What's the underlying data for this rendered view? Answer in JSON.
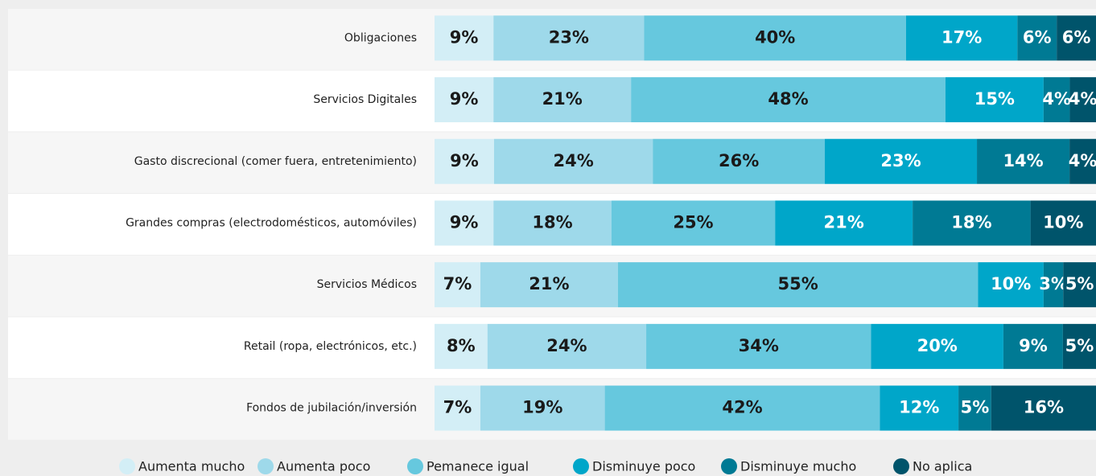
{
  "chart_data": {
    "type": "stacked-bar-horizontal",
    "categories": [
      "Obligaciones",
      "Servicios Digitales",
      "Gasto discrecional (comer fuera, entretenimiento)",
      "Grandes compras (electrodomésticos, automóviles)",
      "Servicios Médicos",
      "Retail (ropa, electrónicos, etc.)",
      "Fondos de jubilación/inversión"
    ],
    "series": [
      {
        "name": "Aumenta mucho",
        "color": "#d3eef6",
        "text_color": "#1a1a1a",
        "values": [
          9,
          9,
          9,
          9,
          7,
          8,
          7
        ],
        "value_labels": [
          "9%",
          "9%",
          "9%",
          "9%",
          "7%",
          "8%",
          "7%"
        ]
      },
      {
        "name": "Aumenta poco",
        "color": "#9ed9ea",
        "text_color": "#1a1a1a",
        "values": [
          23,
          21,
          24,
          18,
          21,
          24,
          19
        ],
        "value_labels": [
          "23%",
          "21%",
          "24%",
          "18%",
          "21%",
          "24%",
          "19%"
        ]
      },
      {
        "name": "Pemanece igual",
        "color": "#66c8de",
        "text_color": "#1a1a1a",
        "values": [
          40,
          48,
          26,
          25,
          55,
          34,
          42
        ],
        "value_labels": [
          "40%",
          "48%",
          "26%",
          "25%",
          "55%",
          "34%",
          "42%"
        ]
      },
      {
        "name": "Disminuye poco",
        "color": "#00a6c9",
        "text_color": "#ffffff",
        "values": [
          17,
          15,
          23,
          21,
          10,
          20,
          12
        ],
        "value_labels": [
          "17%",
          "15%",
          "23%",
          "21%",
          "10%",
          "20%",
          "12%"
        ]
      },
      {
        "name": "Disminuye mucho",
        "color": "#007a94",
        "text_color": "#ffffff",
        "values": [
          6,
          4,
          14,
          18,
          3,
          9,
          5
        ],
        "value_labels": [
          "6%",
          "4%",
          "14%",
          "18%",
          "3%",
          "9%",
          "5%"
        ]
      },
      {
        "name": "No aplica",
        "color": "#00546b",
        "text_color": "#ffffff",
        "values": [
          6,
          4,
          4,
          10,
          5,
          5,
          16
        ],
        "value_labels": [
          "6%",
          "4%",
          "4%",
          "10%",
          "5%",
          "5%",
          "16%"
        ]
      }
    ]
  }
}
